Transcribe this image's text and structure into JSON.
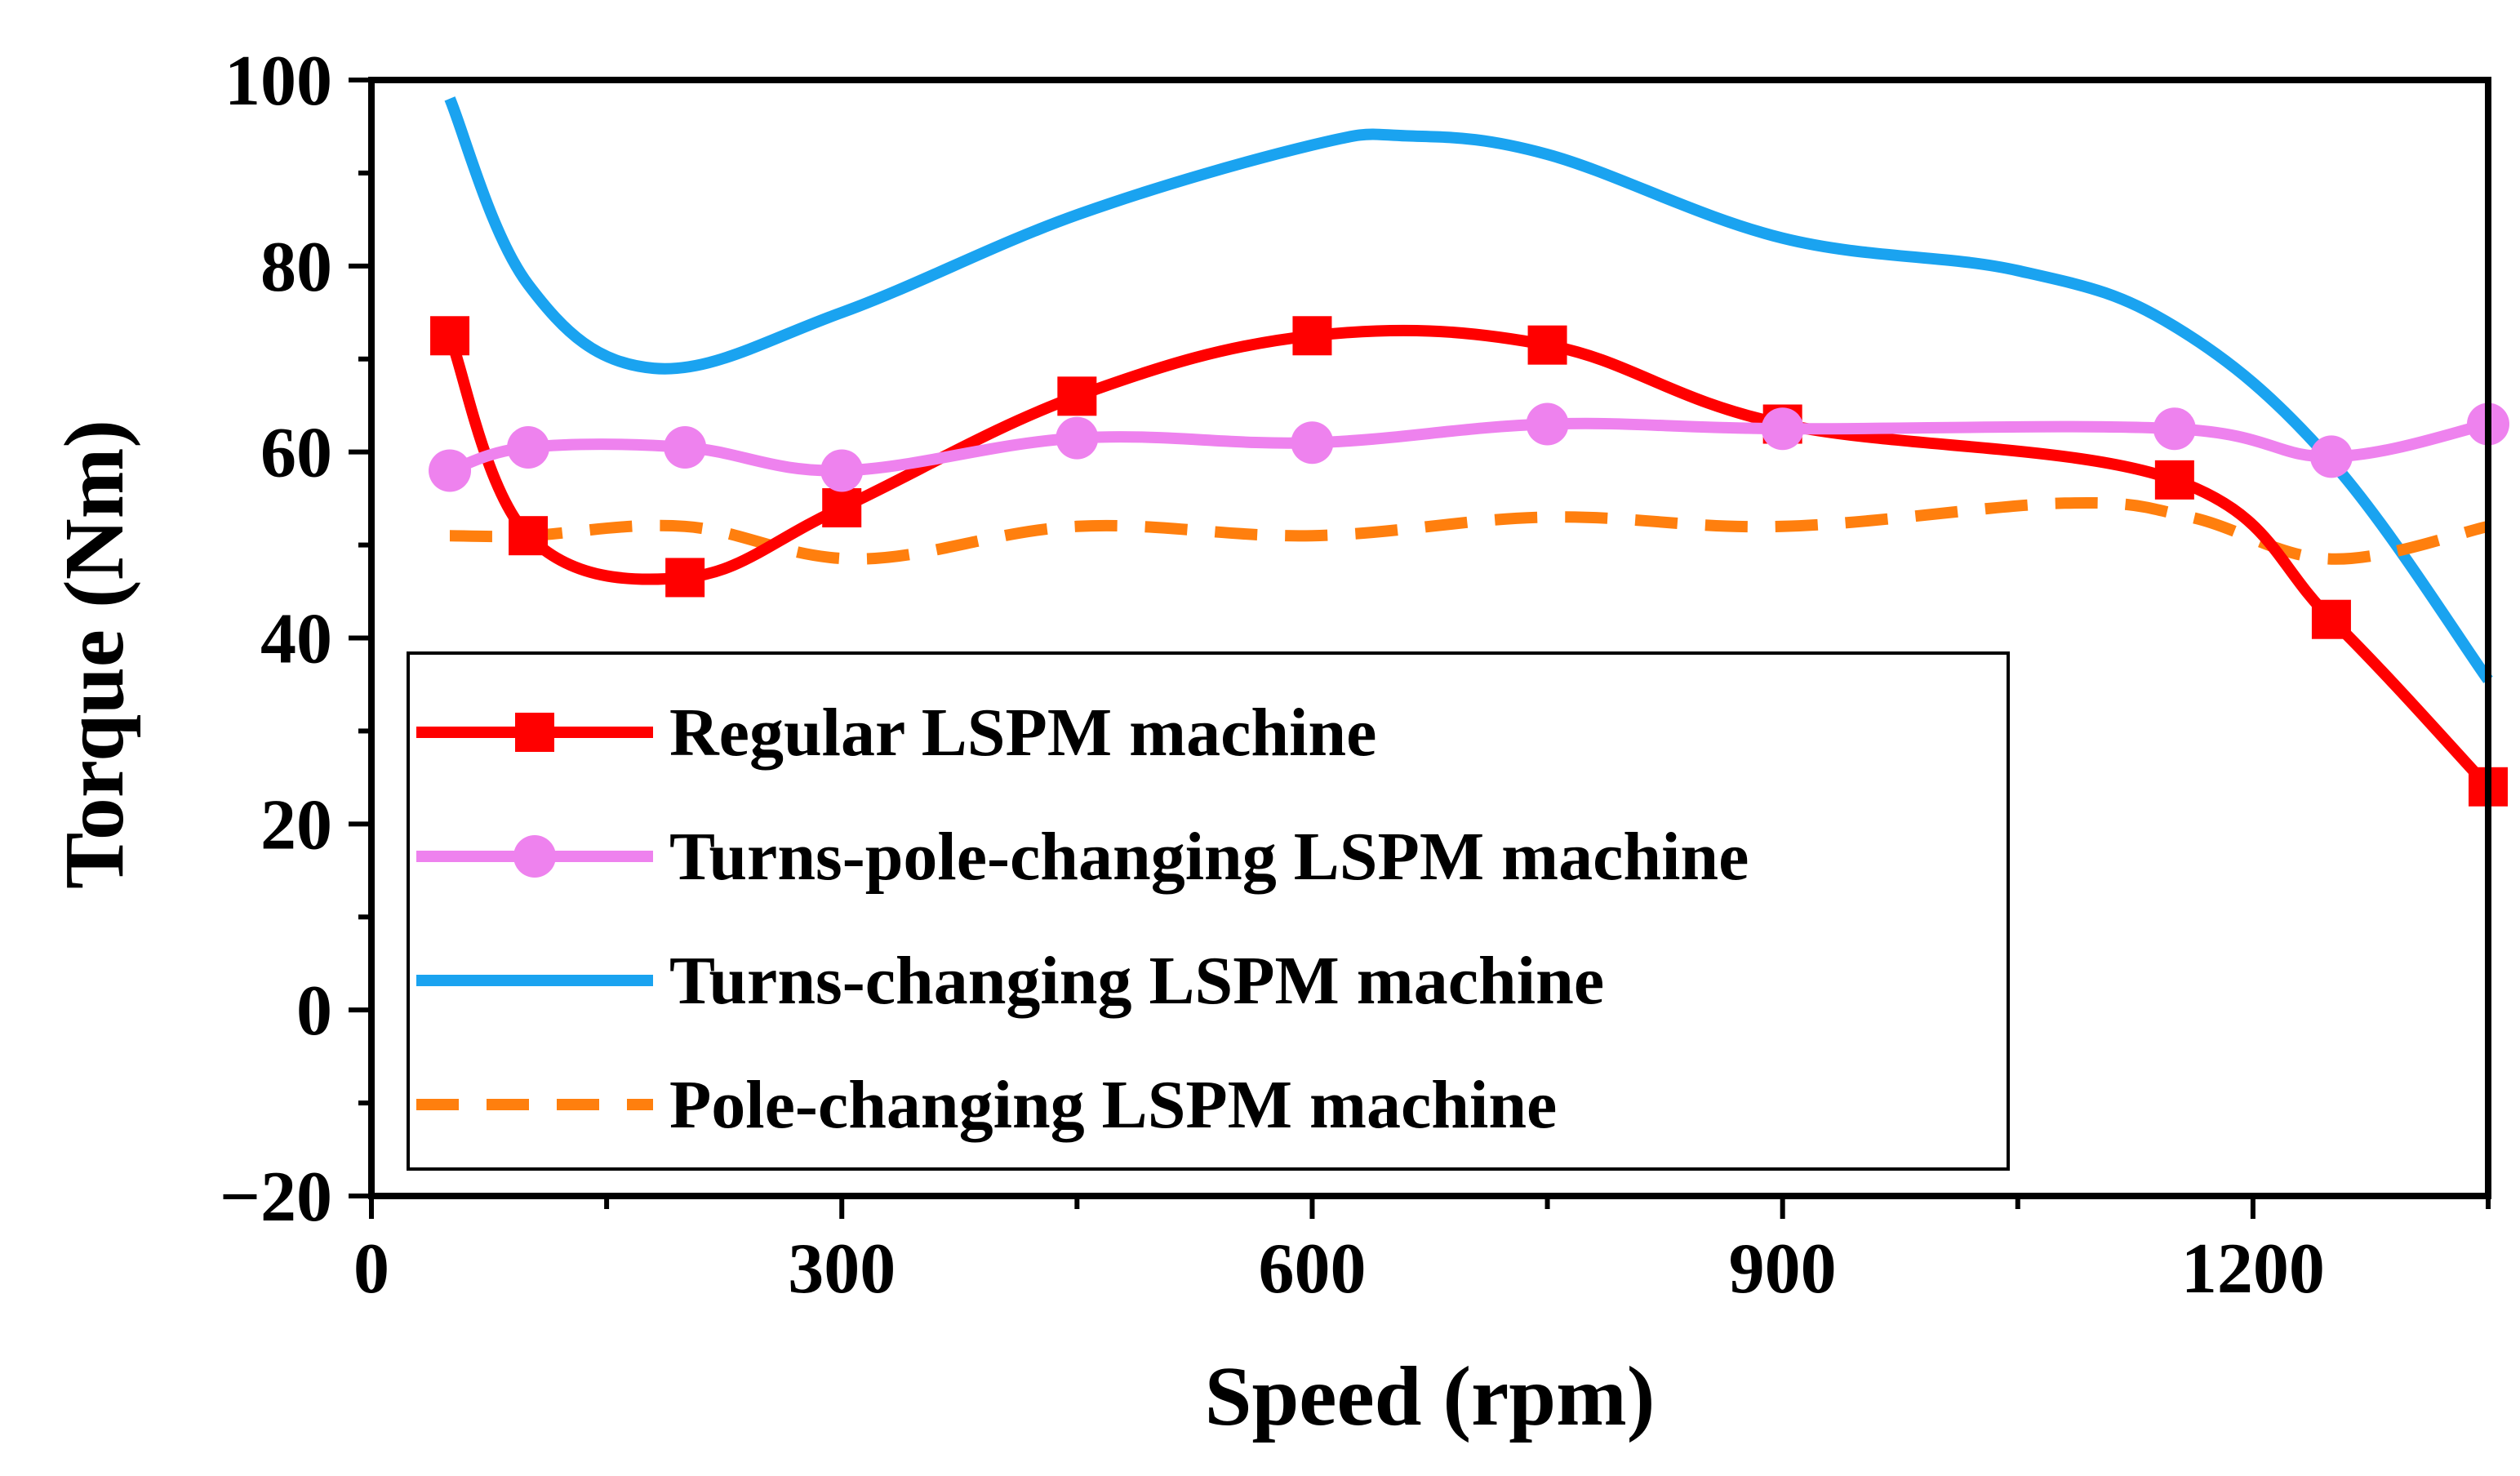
{
  "chart_data": {
    "type": "line",
    "title": "",
    "xlabel": "Speed (rpm)",
    "ylabel": "Torque (Nm)",
    "xlim": [
      0,
      1350
    ],
    "ylim": [
      -20,
      100
    ],
    "xticks": [
      0,
      300,
      600,
      900,
      1200
    ],
    "xtick_labels": [
      "0",
      "300",
      "600",
      "900",
      "1200"
    ],
    "yticks": [
      -20,
      0,
      20,
      40,
      60,
      80,
      100
    ],
    "ytick_labels": [
      "−20",
      "0",
      "20",
      "40",
      "60",
      "80",
      "100"
    ],
    "grid": false,
    "legend_position": "bottom-left",
    "series": [
      {
        "name": "Regular LSPM machine",
        "color": "#ff0000",
        "style": "solid",
        "marker": "square",
        "x": [
          50,
          100,
          200,
          300,
          450,
          600,
          750,
          900,
          1150,
          1250,
          1350
        ],
        "y": [
          72.5,
          51,
          46.5,
          54,
          66,
          72.5,
          71.5,
          63,
          57,
          42,
          24
        ]
      },
      {
        "name": "Turns-pole-changing LSPM machine",
        "color": "#ee82ee",
        "style": "solid",
        "marker": "circle",
        "x": [
          50,
          100,
          200,
          300,
          450,
          600,
          750,
          900,
          1150,
          1250,
          1350
        ],
        "y": [
          58,
          60.5,
          60.5,
          58,
          61.5,
          61,
          63,
          62.5,
          62.5,
          59.5,
          63
        ]
      },
      {
        "name": "Turns-changing LSPM machine",
        "color": "#1aa3f0",
        "style": "solid",
        "marker": "none",
        "x": [
          50,
          100,
          180,
          300,
          450,
          600,
          660,
          750,
          900,
          1050,
          1150,
          1250,
          1350
        ],
        "y": [
          98,
          78,
          69,
          75,
          85.5,
          93,
          94,
          92,
          83,
          79.5,
          73.5,
          59,
          35.5
        ]
      },
      {
        "name": "Pole-changing LSPM machine",
        "color": "#ff7f0e",
        "style": "dashed",
        "marker": "none",
        "x": [
          50,
          100,
          200,
          310,
          450,
          600,
          750,
          900,
          1080,
          1160,
          1250,
          1350
        ],
        "y": [
          51,
          51,
          52,
          48.5,
          52,
          51,
          53,
          52,
          54.5,
          53,
          48.5,
          52
        ]
      }
    ]
  }
}
